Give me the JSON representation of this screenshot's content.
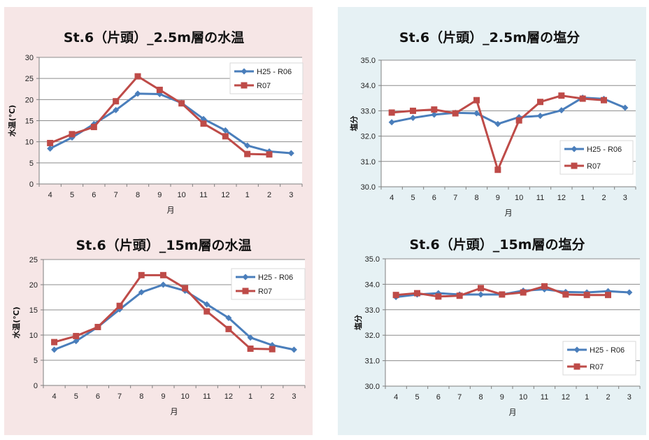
{
  "chart_data": [
    {
      "id": "temp-2.5m",
      "type": "line",
      "title": "St.6（片頭）_2.5m層の水温",
      "xlabel": "月",
      "ylabel": "水温(℃)",
      "categories": [
        "4",
        "5",
        "6",
        "7",
        "8",
        "9",
        "10",
        "11",
        "12",
        "1",
        "2",
        "3"
      ],
      "ylim": [
        0,
        30
      ],
      "yticks": [
        0,
        5,
        10,
        15,
        20,
        25,
        30
      ],
      "ytick_labels": [
        "0",
        "5",
        "10",
        "15",
        "20",
        "25",
        "30"
      ],
      "legend_position": "top-right",
      "series": [
        {
          "name": "H25 - R06",
          "color": "#4a7ebb",
          "marker": "diamond",
          "values": [
            8.4,
            11.0,
            14.2,
            17.5,
            21.4,
            21.3,
            19.2,
            15.4,
            12.7,
            9.1,
            7.7,
            7.3
          ]
        },
        {
          "name": "R07",
          "color": "#be4b48",
          "marker": "square",
          "values": [
            9.7,
            11.8,
            13.5,
            19.6,
            25.5,
            22.3,
            19.1,
            14.3,
            11.3,
            7.1,
            7.0,
            null
          ]
        }
      ]
    },
    {
      "id": "salinity-2.5m",
      "type": "line",
      "title": "St.6（片頭）_2.5m層の塩分",
      "xlabel": "月",
      "ylabel": "塩分",
      "categories": [
        "4",
        "5",
        "6",
        "7",
        "8",
        "9",
        "10",
        "11",
        "12",
        "1",
        "2",
        "3"
      ],
      "ylim": [
        30,
        35
      ],
      "yticks": [
        30,
        31,
        32,
        33,
        34,
        35
      ],
      "ytick_labels": [
        "30.0",
        "31.0",
        "32.0",
        "33.0",
        "34.0",
        "35.0"
      ],
      "legend_position": "bottom-right",
      "series": [
        {
          "name": "H25 - R06",
          "color": "#4a7ebb",
          "marker": "diamond",
          "values": [
            32.55,
            32.72,
            32.85,
            32.92,
            32.9,
            32.48,
            32.75,
            32.8,
            33.02,
            33.52,
            33.47,
            33.12
          ]
        },
        {
          "name": "R07",
          "color": "#be4b48",
          "marker": "square",
          "values": [
            32.93,
            33.0,
            33.05,
            32.9,
            33.42,
            30.67,
            32.62,
            33.35,
            33.6,
            33.48,
            33.42,
            null
          ]
        }
      ]
    },
    {
      "id": "temp-15m",
      "type": "line",
      "title": "St.6（片頭）_15m層の水温",
      "xlabel": "月",
      "ylabel": "水温(℃)",
      "categories": [
        "4",
        "5",
        "6",
        "7",
        "8",
        "9",
        "10",
        "11",
        "12",
        "1",
        "2",
        "3"
      ],
      "ylim": [
        0,
        25
      ],
      "yticks": [
        0,
        5,
        10,
        15,
        20,
        25
      ],
      "ytick_labels": [
        "0",
        "5",
        "10",
        "15",
        "20",
        "25"
      ],
      "legend_position": "top-right",
      "series": [
        {
          "name": "H25 - R06",
          "color": "#4a7ebb",
          "marker": "diamond",
          "values": [
            7.1,
            8.8,
            11.6,
            15.1,
            18.5,
            20.0,
            18.8,
            16.1,
            13.4,
            9.5,
            8.0,
            7.1
          ]
        },
        {
          "name": "R07",
          "color": "#be4b48",
          "marker": "square",
          "values": [
            8.6,
            9.8,
            11.6,
            15.8,
            21.9,
            21.9,
            19.3,
            14.7,
            11.2,
            7.3,
            7.2,
            null
          ]
        }
      ]
    },
    {
      "id": "salinity-15m",
      "type": "line",
      "title": "St.6（片頭）_15m層の塩分",
      "xlabel": "月",
      "ylabel": "塩分",
      "categories": [
        "4",
        "5",
        "6",
        "7",
        "8",
        "9",
        "10",
        "11",
        "12",
        "1",
        "2",
        "3"
      ],
      "ylim": [
        30,
        35
      ],
      "yticks": [
        30,
        31,
        32,
        33,
        34,
        35
      ],
      "ytick_labels": [
        "30.0",
        "31.0",
        "32.0",
        "33.0",
        "34.0",
        "35.0"
      ],
      "legend_position": "bottom-right",
      "series": [
        {
          "name": "H25 - R06",
          "color": "#4a7ebb",
          "marker": "diamond",
          "values": [
            33.5,
            33.6,
            33.65,
            33.6,
            33.6,
            33.6,
            33.75,
            33.8,
            33.7,
            33.68,
            33.73,
            33.68
          ]
        },
        {
          "name": "R07",
          "color": "#be4b48",
          "marker": "square",
          "values": [
            33.58,
            33.65,
            33.52,
            33.55,
            33.85,
            33.6,
            33.68,
            33.92,
            33.6,
            33.58,
            33.58,
            null
          ]
        }
      ]
    }
  ]
}
